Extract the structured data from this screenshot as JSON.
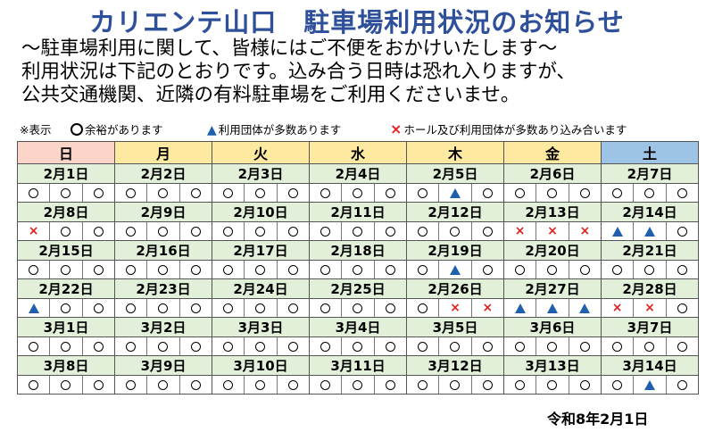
{
  "title": "カリエンテ山口　駐車場利用状況のお知らせ",
  "intro": [
    "～駐車場利用に関して、皆様にはご不便をおかけいたします～",
    "利用状況は下記のとおりです。込み合う日時は恐れ入りますが、",
    "公共交通機関、近隣の有料駐車場をご利用くださいませ。"
  ],
  "legend": {
    "prefix": "※表示",
    "circle": "余裕があります",
    "triangle": "利用団体が多数あります",
    "cross": "ホール及び利用団体が多数あり込み合います"
  },
  "weekdays": [
    "日",
    "月",
    "火",
    "水",
    "木",
    "金",
    "土"
  ],
  "weeks": [
    {
      "dates": [
        "2月1日",
        "2月2日",
        "2月3日",
        "2月4日",
        "2月5日",
        "2月6日",
        "2月7日"
      ],
      "status": [
        [
          "circle",
          "circle",
          "circle"
        ],
        [
          "circle",
          "circle",
          "circle"
        ],
        [
          "circle",
          "circle",
          "circle"
        ],
        [
          "circle",
          "circle",
          "circle"
        ],
        [
          "circle",
          "triangle",
          "circle"
        ],
        [
          "circle",
          "circle",
          "circle"
        ],
        [
          "circle",
          "circle",
          "circle"
        ]
      ]
    },
    {
      "dates": [
        "2月8日",
        "2月9日",
        "2月10日",
        "2月11日",
        "2月12日",
        "2月13日",
        "2月14日"
      ],
      "status": [
        [
          "cross",
          "circle",
          "circle"
        ],
        [
          "circle",
          "circle",
          "circle"
        ],
        [
          "circle",
          "circle",
          "circle"
        ],
        [
          "circle",
          "circle",
          "circle"
        ],
        [
          "circle",
          "circle",
          "circle"
        ],
        [
          "cross",
          "cross",
          "cross"
        ],
        [
          "triangle",
          "triangle",
          "circle"
        ]
      ]
    },
    {
      "dates": [
        "2月15日",
        "2月16日",
        "2月17日",
        "2月18日",
        "2月19日",
        "2月20日",
        "2月21日"
      ],
      "status": [
        [
          "circle",
          "circle",
          "circle"
        ],
        [
          "circle",
          "circle",
          "circle"
        ],
        [
          "circle",
          "circle",
          "circle"
        ],
        [
          "circle",
          "circle",
          "circle"
        ],
        [
          "circle",
          "triangle",
          "circle"
        ],
        [
          "circle",
          "circle",
          "circle"
        ],
        [
          "circle",
          "circle",
          "circle"
        ]
      ]
    },
    {
      "dates": [
        "2月22日",
        "2月23日",
        "2月24日",
        "2月25日",
        "2月26日",
        "2月27日",
        "2月28日"
      ],
      "status": [
        [
          "triangle",
          "circle",
          "circle"
        ],
        [
          "circle",
          "circle",
          "circle"
        ],
        [
          "circle",
          "circle",
          "circle"
        ],
        [
          "circle",
          "circle",
          "circle"
        ],
        [
          "circle",
          "cross",
          "cross"
        ],
        [
          "triangle",
          "triangle",
          "triangle"
        ],
        [
          "cross",
          "cross",
          "circle"
        ]
      ]
    },
    {
      "dates": [
        "3月1日",
        "3月2日",
        "3月3日",
        "3月4日",
        "3月5日",
        "3月6日",
        "3月7日"
      ],
      "status": [
        [
          "circle",
          "circle",
          "circle"
        ],
        [
          "circle",
          "circle",
          "circle"
        ],
        [
          "circle",
          "circle",
          "circle"
        ],
        [
          "circle",
          "circle",
          "circle"
        ],
        [
          "circle",
          "circle",
          "circle"
        ],
        [
          "circle",
          "circle",
          "circle"
        ],
        [
          "circle",
          "circle",
          "circle"
        ]
      ]
    },
    {
      "dates": [
        "3月8日",
        "3月9日",
        "3月10日",
        "3月11日",
        "3月12日",
        "3月13日",
        "3月14日"
      ],
      "status": [
        [
          "circle",
          "circle",
          "circle"
        ],
        [
          "circle",
          "circle",
          "circle"
        ],
        [
          "circle",
          "circle",
          "circle"
        ],
        [
          "circle",
          "circle",
          "circle"
        ],
        [
          "circle",
          "circle",
          "circle"
        ],
        [
          "circle",
          "circle",
          "circle"
        ],
        [
          "circle",
          "triangle",
          "circle"
        ]
      ]
    }
  ],
  "issued_date": "令和8年2月1日",
  "colors": {
    "title": "#2e4f9a",
    "sunday": "#fbd5c8",
    "weekday": "#fde9a0",
    "saturday": "#9dc3e6",
    "date_row": "#e2efd9",
    "triangle": "#1f5fae",
    "cross": "#e02020"
  }
}
